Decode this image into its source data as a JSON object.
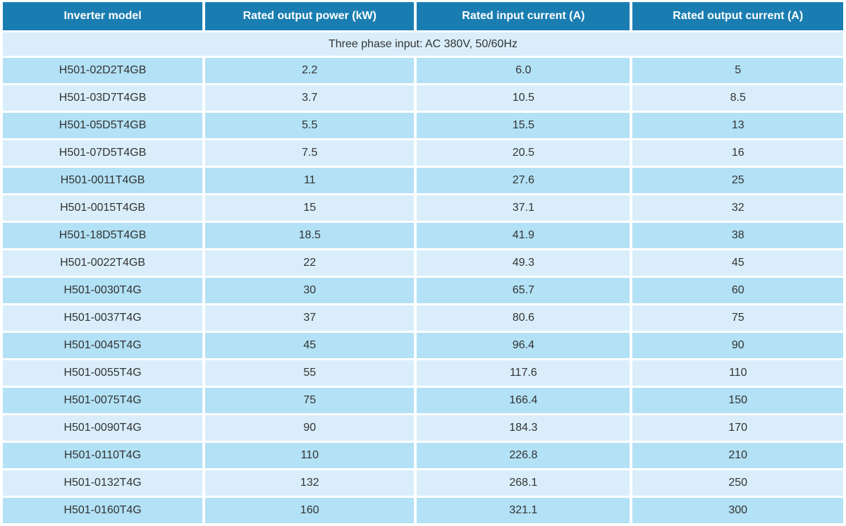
{
  "colors": {
    "header_bg": "#1a7db2",
    "header_text": "#ffffff",
    "row_dark": "#b3e1f5",
    "row_light": "#d9eefa",
    "cell_text": "#333333",
    "page_bg": "#ffffff"
  },
  "table": {
    "columns": [
      "Inverter model",
      "Rated output power (kW)",
      "Rated input current (A)",
      "Rated output current (A)"
    ],
    "section_note": "Three phase input: AC 380V, 50/60Hz",
    "rows": [
      {
        "model": "H501-02D2T4GB",
        "output_power_kw": "2.2",
        "input_current_a": "6.0",
        "output_current_a": "5"
      },
      {
        "model": "H501-03D7T4GB",
        "output_power_kw": "3.7",
        "input_current_a": "10.5",
        "output_current_a": "8.5"
      },
      {
        "model": "H501-05D5T4GB",
        "output_power_kw": "5.5",
        "input_current_a": "15.5",
        "output_current_a": "13"
      },
      {
        "model": "H501-07D5T4GB",
        "output_power_kw": "7.5",
        "input_current_a": "20.5",
        "output_current_a": "16"
      },
      {
        "model": "H501-0011T4GB",
        "output_power_kw": "11",
        "input_current_a": "27.6",
        "output_current_a": "25"
      },
      {
        "model": "H501-0015T4GB",
        "output_power_kw": "15",
        "input_current_a": "37.1",
        "output_current_a": "32"
      },
      {
        "model": "H501-18D5T4GB",
        "output_power_kw": "18.5",
        "input_current_a": "41.9",
        "output_current_a": "38"
      },
      {
        "model": "H501-0022T4GB",
        "output_power_kw": "22",
        "input_current_a": "49.3",
        "output_current_a": "45"
      },
      {
        "model": "H501-0030T4G",
        "output_power_kw": "30",
        "input_current_a": "65.7",
        "output_current_a": "60"
      },
      {
        "model": "H501-0037T4G",
        "output_power_kw": "37",
        "input_current_a": "80.6",
        "output_current_a": "75"
      },
      {
        "model": "H501-0045T4G",
        "output_power_kw": "45",
        "input_current_a": "96.4",
        "output_current_a": "90"
      },
      {
        "model": "H501-0055T4G",
        "output_power_kw": "55",
        "input_current_a": "117.6",
        "output_current_a": "110"
      },
      {
        "model": "H501-0075T4G",
        "output_power_kw": "75",
        "input_current_a": "166.4",
        "output_current_a": "150"
      },
      {
        "model": "H501-0090T4G",
        "output_power_kw": "90",
        "input_current_a": "184.3",
        "output_current_a": "170"
      },
      {
        "model": "H501-0110T4G",
        "output_power_kw": "110",
        "input_current_a": "226.8",
        "output_current_a": "210"
      },
      {
        "model": "H501-0132T4G",
        "output_power_kw": "132",
        "input_current_a": "268.1",
        "output_current_a": "250"
      },
      {
        "model": "H501-0160T4G",
        "output_power_kw": "160",
        "input_current_a": "321.1",
        "output_current_a": "300"
      }
    ]
  }
}
